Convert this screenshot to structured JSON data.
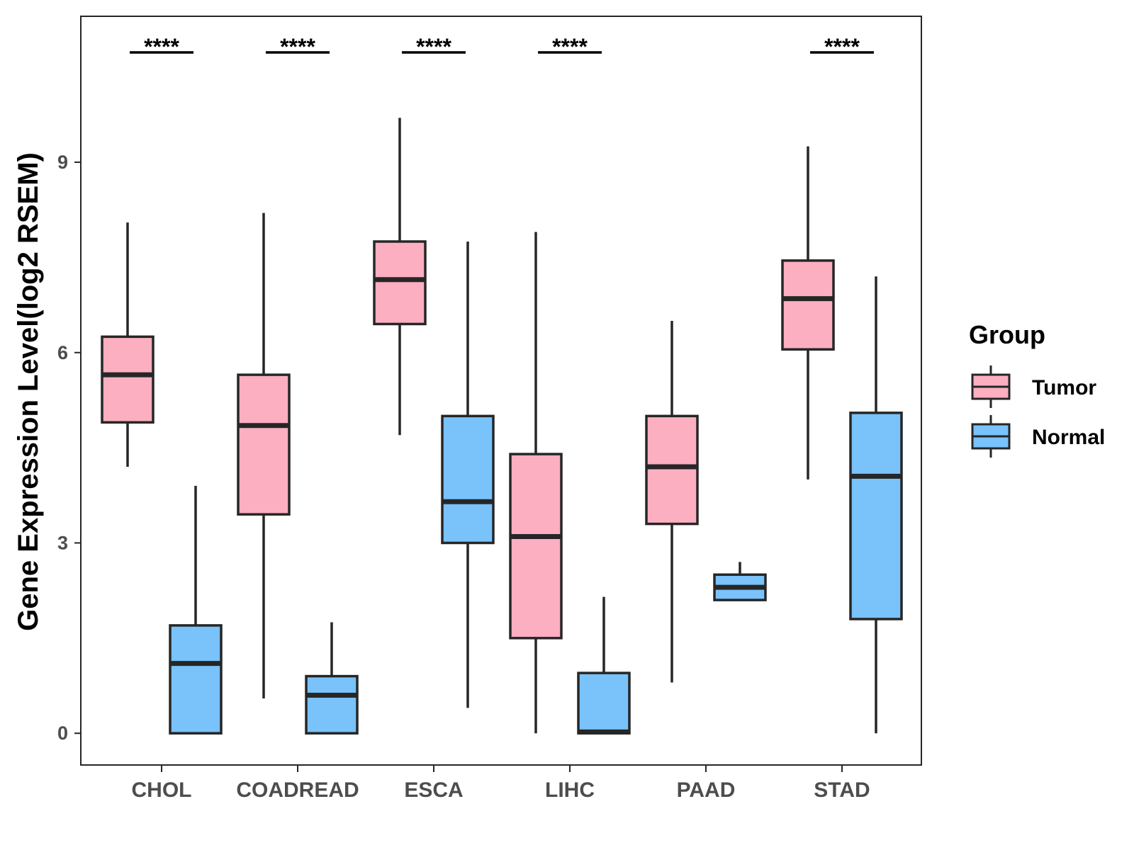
{
  "chart_data": {
    "type": "boxplot",
    "title": "",
    "xlabel": "",
    "ylabel": "Gene Expression Level(log2 RSEM)",
    "ylim": [
      -0.5,
      11.3
    ],
    "yticks": [
      0,
      3,
      6,
      9
    ],
    "categories": [
      "CHOL",
      "COADREAD",
      "ESCA",
      "LIHC",
      "PAAD",
      "STAD"
    ],
    "legend": {
      "title": "Group",
      "position": "right",
      "entries": [
        "Tumor",
        "Normal"
      ]
    },
    "colors": {
      "Tumor": "#FBAFC1",
      "Normal": "#79C2FA",
      "stroke": "#262626"
    },
    "series": [
      {
        "name": "Tumor",
        "boxes": [
          {
            "category": "CHOL",
            "min": 4.2,
            "q1": 4.9,
            "median": 5.65,
            "q3": 6.25,
            "max": 8.05
          },
          {
            "category": "COADREAD",
            "min": 0.55,
            "q1": 3.45,
            "median": 4.85,
            "q3": 5.65,
            "max": 8.2
          },
          {
            "category": "ESCA",
            "min": 4.7,
            "q1": 6.45,
            "median": 7.15,
            "q3": 7.75,
            "max": 9.7
          },
          {
            "category": "LIHC",
            "min": 0.0,
            "q1": 1.5,
            "median": 3.1,
            "q3": 4.4,
            "max": 7.9
          },
          {
            "category": "PAAD",
            "min": 0.8,
            "q1": 3.3,
            "median": 4.2,
            "q3": 5.0,
            "max": 6.5
          },
          {
            "category": "STAD",
            "min": 4.0,
            "q1": 6.05,
            "median": 6.85,
            "q3": 7.45,
            "max": 9.25
          }
        ]
      },
      {
        "name": "Normal",
        "boxes": [
          {
            "category": "CHOL",
            "min": 0.0,
            "q1": 0.0,
            "median": 1.1,
            "q3": 1.7,
            "max": 3.9
          },
          {
            "category": "COADREAD",
            "min": 0.0,
            "q1": 0.0,
            "median": 0.6,
            "q3": 0.9,
            "max": 1.75
          },
          {
            "category": "ESCA",
            "min": 0.4,
            "q1": 3.0,
            "median": 3.65,
            "q3": 5.0,
            "max": 7.75
          },
          {
            "category": "LIHC",
            "min": 0.0,
            "q1": 0.0,
            "median": 0.02,
            "q3": 0.95,
            "max": 2.15
          },
          {
            "category": "PAAD",
            "min": 2.1,
            "q1": 2.1,
            "median": 2.3,
            "q3": 2.5,
            "max": 2.7
          },
          {
            "category": "STAD",
            "min": 0.0,
            "q1": 1.8,
            "median": 4.05,
            "q3": 5.05,
            "max": 7.2
          }
        ]
      }
    ],
    "annotations": [
      {
        "category": "CHOL",
        "text": "****"
      },
      {
        "category": "COADREAD",
        "text": "****"
      },
      {
        "category": "ESCA",
        "text": "****"
      },
      {
        "category": "LIHC",
        "text": "****"
      },
      {
        "category": "STAD",
        "text": "****"
      }
    ]
  }
}
